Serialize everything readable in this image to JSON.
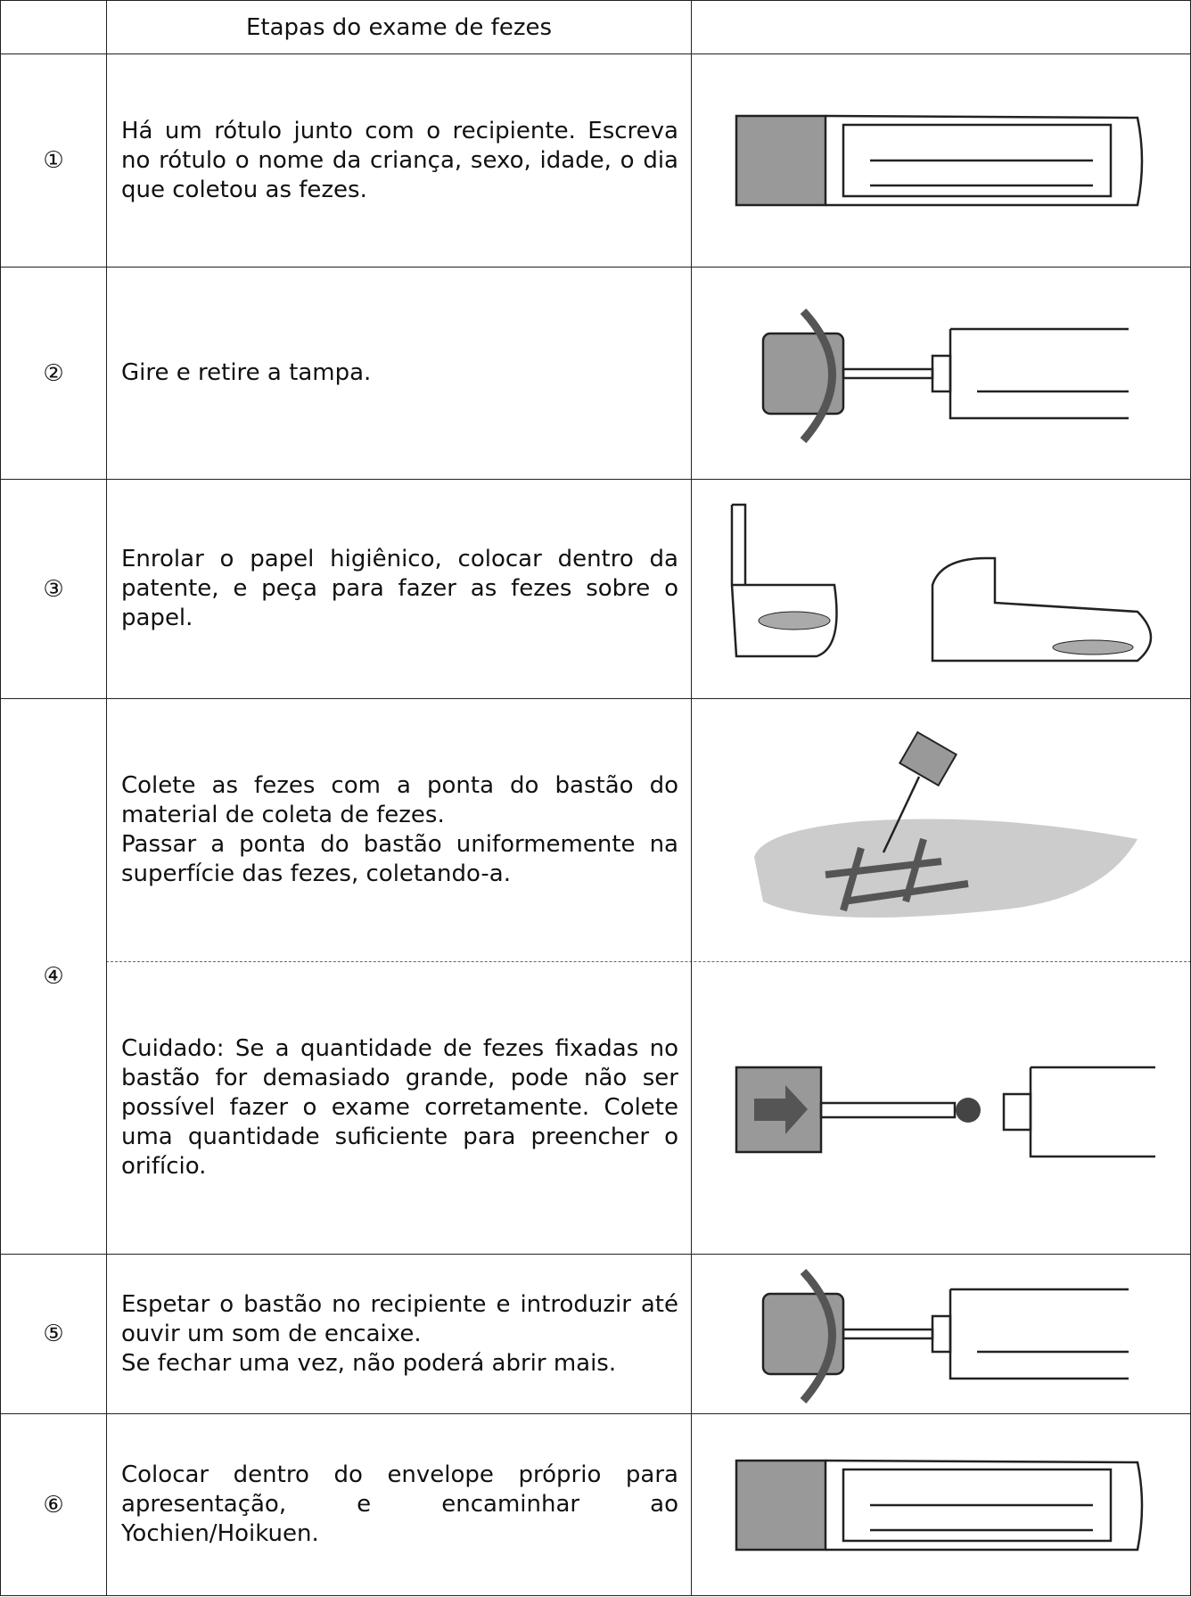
{
  "header": {
    "title": "Etapas do exame de fezes"
  },
  "rows": [
    {
      "number": "①",
      "paragraphs": [
        "Há um rótulo junto com o recipiente. Escreva no rótulo o nome da criança, sexo, idade, o dia que coletou as fezes."
      ]
    },
    {
      "number": "②",
      "paragraphs": [
        "Gire e retire a tampa."
      ]
    },
    {
      "number": "③",
      "paragraphs": [
        "Enrolar o papel higiênico, colocar dentro da patente, e peça para fazer as fezes sobre o papel."
      ]
    },
    {
      "number": "④",
      "paragraphs": [
        "Colete as fezes com a ponta do bastão do material de coleta de fezes.",
        "Passar a ponta do bastão uniformemente na superfície das fezes, coletando-a."
      ]
    },
    {
      "number": null,
      "paragraphs": [
        "Cuidado: Se a quantidade de fezes fixadas no bastão for demasiado grande, pode não ser possível fazer o exame corretamente. Colete uma quantidade suficiente para preencher o orifício."
      ]
    },
    {
      "number": "⑤",
      "paragraphs": [
        "Espetar o bastão no recipiente e introduzir até ouvir um som de encaixe.",
        "Se fechar uma vez, não poderá abrir mais."
      ]
    },
    {
      "number": "⑥",
      "paragraphs": [
        "Colocar dentro do envelope próprio para apresentação, e encaminhar ao Yochien/Hoikuen."
      ]
    }
  ]
}
